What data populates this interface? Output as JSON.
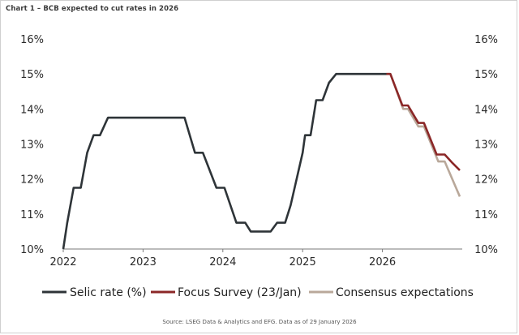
{
  "title": "Chart 1 – BCB expected to cut rates in 2026",
  "source": "Source: LSEG Data & Analytics and EFG. Data as of 29 January 2026",
  "colors": {
    "selic": "#2e3438",
    "focus": "#8b2727",
    "consensus": "#b9a89a",
    "axis": "#7a7a7a"
  },
  "chart_data": {
    "type": "line",
    "x_ticks": [
      "2022",
      "2023",
      "2024",
      "2025",
      "2026"
    ],
    "y_ticks_left": [
      "10%",
      "11%",
      "12%",
      "13%",
      "14%",
      "15%",
      "16%"
    ],
    "y_ticks_right": [
      "10%",
      "11%",
      "12%",
      "13%",
      "14%",
      "15%",
      "16%"
    ],
    "xlim": [
      2022.0,
      2027.0
    ],
    "ylim": [
      10,
      16
    ],
    "legend": "bottom",
    "series": [
      {
        "name": "Selic rate (%)",
        "color": "#2e3438",
        "points": [
          [
            2022.0,
            10.0
          ],
          [
            2022.05,
            10.75
          ],
          [
            2022.13,
            11.75
          ],
          [
            2022.22,
            11.75
          ],
          [
            2022.3,
            12.75
          ],
          [
            2022.38,
            13.25
          ],
          [
            2022.46,
            13.25
          ],
          [
            2022.56,
            13.75
          ],
          [
            2023.2,
            13.75
          ],
          [
            2023.52,
            13.75
          ],
          [
            2023.65,
            12.75
          ],
          [
            2023.75,
            12.75
          ],
          [
            2023.92,
            11.75
          ],
          [
            2024.02,
            11.75
          ],
          [
            2024.17,
            10.75
          ],
          [
            2024.28,
            10.75
          ],
          [
            2024.35,
            10.5
          ],
          [
            2024.6,
            10.5
          ],
          [
            2024.68,
            10.75
          ],
          [
            2024.78,
            10.75
          ],
          [
            2024.85,
            11.25
          ],
          [
            2025.0,
            12.75
          ],
          [
            2025.03,
            13.25
          ],
          [
            2025.1,
            13.25
          ],
          [
            2025.17,
            14.25
          ],
          [
            2025.25,
            14.25
          ],
          [
            2025.33,
            14.75
          ],
          [
            2025.42,
            15.0
          ],
          [
            2026.05,
            15.0
          ]
        ]
      },
      {
        "name": "Focus Survey (23/Jan)",
        "color": "#8b2727",
        "points": [
          [
            2026.05,
            15.0
          ],
          [
            2026.1,
            15.0
          ],
          [
            2026.25,
            14.1
          ],
          [
            2026.32,
            14.1
          ],
          [
            2026.45,
            13.6
          ],
          [
            2026.52,
            13.6
          ],
          [
            2026.68,
            12.7
          ],
          [
            2026.78,
            12.7
          ],
          [
            2026.88,
            12.45
          ],
          [
            2026.97,
            12.25
          ]
        ]
      },
      {
        "name": "Consensus expectations",
        "color": "#b9a89a",
        "points": [
          [
            2026.05,
            15.0
          ],
          [
            2026.1,
            15.0
          ],
          [
            2026.26,
            14.0
          ],
          [
            2026.32,
            14.0
          ],
          [
            2026.45,
            13.5
          ],
          [
            2026.52,
            13.5
          ],
          [
            2026.7,
            12.5
          ],
          [
            2026.78,
            12.5
          ],
          [
            2026.97,
            11.5
          ]
        ]
      }
    ]
  }
}
